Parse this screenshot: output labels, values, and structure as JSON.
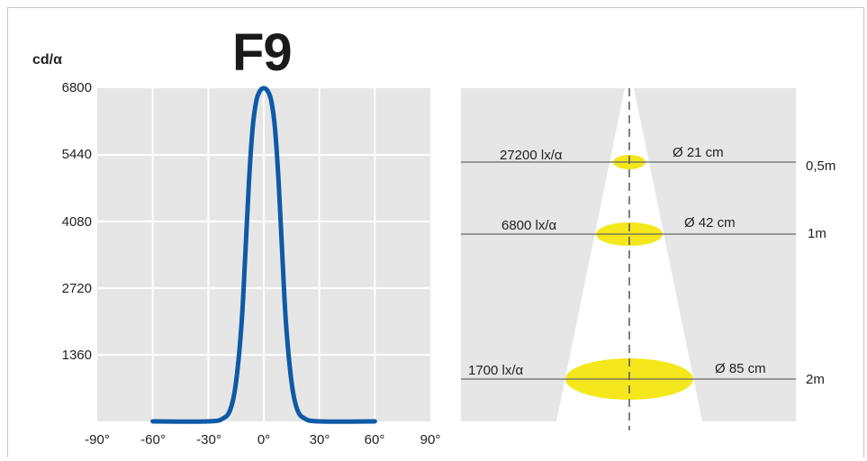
{
  "chart_data": [
    {
      "type": "line",
      "title": "F9",
      "ylabel": "cd/α",
      "xlabel": "",
      "xlim": [
        -90,
        90
      ],
      "ylim": [
        0,
        6800
      ],
      "yticks": [
        "6800",
        "5440",
        "4080",
        "2720",
        "1360"
      ],
      "xticks": [
        "-90°",
        "-60°",
        "-30°",
        "0°",
        "30°",
        "60°",
        "90°"
      ],
      "grid": true,
      "series": [
        {
          "color": "#0e5aa7",
          "x": [
            -60,
            -30,
            -22,
            -18,
            -15,
            -12,
            -10,
            -8,
            -6,
            -4,
            -2,
            0,
            2,
            4,
            6,
            8,
            10,
            12,
            15,
            18,
            22,
            30,
            60
          ],
          "y": [
            0,
            0,
            60,
            250,
            800,
            2000,
            3400,
            4900,
            6000,
            6550,
            6750,
            6800,
            6750,
            6550,
            6000,
            4900,
            3400,
            2000,
            800,
            250,
            60,
            0,
            0
          ]
        }
      ]
    },
    {
      "type": "diagram",
      "rows": [
        {
          "illuminance": "27200 lx/α",
          "diameter": "Ø 21 cm",
          "distance": "0,5m"
        },
        {
          "illuminance": "6800 lx/α",
          "diameter": "Ø 42 cm",
          "distance": "1m"
        },
        {
          "illuminance": "1700 lx/α",
          "diameter": "Ø 85 cm",
          "distance": "2m"
        }
      ]
    }
  ],
  "colors": {
    "curve": "#0e5aa7",
    "spot": "#f4e71b",
    "panel": "#e6e6e6",
    "grid": "#ffffff"
  }
}
